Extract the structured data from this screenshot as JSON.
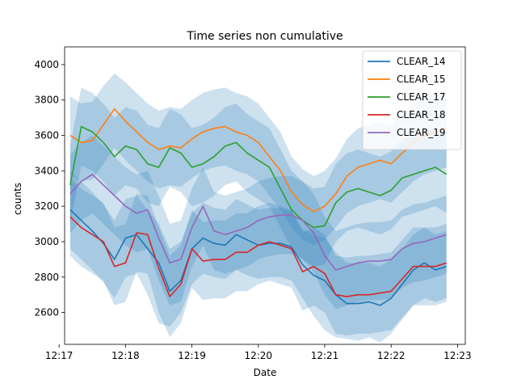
{
  "chart_data": {
    "type": "line",
    "title": "Time series non cumulative",
    "xlabel": "Date",
    "ylabel": "counts",
    "xlim": [
      "12:17:05",
      "12:23:07"
    ],
    "ylim": [
      2420,
      4100
    ],
    "x_ticks": [
      "12:17",
      "12:18",
      "12:19",
      "12:20",
      "12:21",
      "12:22",
      "12:23"
    ],
    "y_ticks": [
      2600,
      2800,
      3000,
      3200,
      3400,
      3600,
      3800,
      4000
    ],
    "legend_position": "top-right",
    "grid": false,
    "band_color": "#1f77b4",
    "x": [
      "12:17:10",
      "12:17:20",
      "12:17:30",
      "12:17:40",
      "12:17:50",
      "12:18:00",
      "12:18:10",
      "12:18:20",
      "12:18:30",
      "12:18:40",
      "12:18:50",
      "12:19:00",
      "12:19:10",
      "12:19:20",
      "12:19:30",
      "12:19:40",
      "12:19:50",
      "12:20:00",
      "12:20:10",
      "12:20:20",
      "12:20:30",
      "12:20:40",
      "12:20:50",
      "12:21:00",
      "12:21:10",
      "12:21:20",
      "12:21:30",
      "12:21:40",
      "12:21:50",
      "12:22:00",
      "12:22:10",
      "12:22:20",
      "12:22:30",
      "12:22:40",
      "12:22:50"
    ],
    "series": [
      {
        "name": "CLEAR_14",
        "color": "#1f77b4",
        "values": [
          3180,
          3120,
          3060,
          2990,
          2900,
          3020,
          3040,
          2960,
          2880,
          2720,
          2780,
          2960,
          3020,
          2990,
          2980,
          3040,
          3010,
          2980,
          2990,
          2990,
          2970,
          2870,
          2810,
          2780,
          2700,
          2650,
          2650,
          2660,
          2640,
          2680,
          2760,
          2840,
          2880,
          2840,
          2860
        ],
        "band_lower": [
          2960,
          2900,
          2840,
          2770,
          2680,
          2800,
          2820,
          2700,
          2540,
          2520,
          2600,
          2760,
          2820,
          2800,
          2790,
          2840,
          2810,
          2790,
          2800,
          2800,
          2780,
          2680,
          2580,
          2500,
          2460,
          2450,
          2440,
          2460,
          2430,
          2480,
          2560,
          2640,
          2680,
          2660,
          2680
        ],
        "band_upper": [
          3400,
          3340,
          3280,
          3210,
          3120,
          3240,
          3260,
          3180,
          3100,
          2960,
          3000,
          3160,
          3220,
          3190,
          3180,
          3240,
          3210,
          3180,
          3190,
          3190,
          3170,
          3070,
          3040,
          3020,
          2940,
          2880,
          2880,
          2880,
          2860,
          2900,
          2960,
          3040,
          3080,
          3040,
          3060
        ]
      },
      {
        "name": "CLEAR_15",
        "color": "#ff7f0e",
        "values": [
          3600,
          3560,
          3570,
          3660,
          3750,
          3680,
          3620,
          3560,
          3520,
          3540,
          3530,
          3580,
          3620,
          3640,
          3650,
          3620,
          3600,
          3560,
          3480,
          3400,
          3280,
          3210,
          3170,
          3200,
          3270,
          3370,
          3420,
          3440,
          3460,
          3440,
          3500,
          3560,
          3600,
          3620,
          3640
        ],
        "band_lower": [
          3380,
          3340,
          3350,
          3440,
          3530,
          3460,
          3400,
          3340,
          3300,
          3320,
          3310,
          3360,
          3400,
          3420,
          3430,
          3400,
          3380,
          3340,
          3260,
          3180,
          3080,
          3010,
          2980,
          3010,
          3080,
          3160,
          3200,
          3220,
          3240,
          3220,
          3280,
          3340,
          3380,
          3400,
          3420
        ],
        "band_upper": [
          3820,
          3780,
          3790,
          3880,
          3950,
          3900,
          3840,
          3780,
          3740,
          3760,
          3750,
          3800,
          3840,
          3860,
          3870,
          3840,
          3820,
          3780,
          3700,
          3620,
          3480,
          3410,
          3370,
          3400,
          3470,
          3580,
          3640,
          3660,
          3680,
          3660,
          3720,
          3780,
          3820,
          3840,
          3860
        ]
      },
      {
        "name": "CLEAR_17",
        "color": "#2ca02c",
        "values": [
          3320,
          3650,
          3620,
          3560,
          3480,
          3540,
          3520,
          3440,
          3420,
          3530,
          3500,
          3420,
          3440,
          3480,
          3540,
          3560,
          3500,
          3460,
          3420,
          3300,
          3180,
          3120,
          3080,
          3090,
          3220,
          3280,
          3300,
          3280,
          3260,
          3290,
          3360,
          3380,
          3400,
          3420,
          3380
        ],
        "band_lower": [
          3100,
          3430,
          3400,
          3340,
          3260,
          3320,
          3300,
          3220,
          3200,
          3310,
          3280,
          3200,
          3220,
          3260,
          3320,
          3340,
          3280,
          3240,
          3200,
          3080,
          2960,
          2900,
          2860,
          2870,
          3000,
          3060,
          3080,
          3060,
          3040,
          3070,
          3140,
          3160,
          3180,
          3200,
          3160
        ],
        "band_upper": [
          3540,
          3870,
          3840,
          3780,
          3700,
          3760,
          3740,
          3660,
          3640,
          3750,
          3720,
          3640,
          3660,
          3700,
          3760,
          3780,
          3720,
          3680,
          3640,
          3520,
          3400,
          3340,
          3300,
          3310,
          3440,
          3500,
          3520,
          3500,
          3480,
          3510,
          3580,
          3600,
          3620,
          3640,
          3600
        ]
      },
      {
        "name": "CLEAR_18",
        "color": "#d62728",
        "values": [
          3140,
          3080,
          3040,
          3000,
          2860,
          2880,
          3050,
          3040,
          2850,
          2690,
          2760,
          2960,
          2890,
          2900,
          2900,
          2940,
          2940,
          2980,
          3000,
          2980,
          2960,
          2830,
          2860,
          2820,
          2700,
          2690,
          2700,
          2700,
          2710,
          2720,
          2790,
          2860,
          2860,
          2860,
          2880
        ],
        "band_lower": [
          2920,
          2860,
          2820,
          2780,
          2640,
          2660,
          2830,
          2820,
          2600,
          2460,
          2540,
          2740,
          2670,
          2680,
          2680,
          2720,
          2720,
          2760,
          2780,
          2760,
          2740,
          2610,
          2640,
          2600,
          2480,
          2470,
          2480,
          2480,
          2490,
          2500,
          2570,
          2640,
          2640,
          2640,
          2660
        ],
        "band_upper": [
          3360,
          3300,
          3260,
          3220,
          3080,
          3100,
          3270,
          3260,
          3080,
          2920,
          2980,
          3180,
          3110,
          3120,
          3120,
          3160,
          3160,
          3200,
          3220,
          3200,
          3180,
          3050,
          3080,
          3040,
          2920,
          2910,
          2920,
          2920,
          2930,
          2940,
          3010,
          3080,
          3080,
          3080,
          3100
        ]
      },
      {
        "name": "CLEAR_19",
        "color": "#9467bd",
        "values": [
          3270,
          3340,
          3380,
          3320,
          3260,
          3200,
          3160,
          3180,
          3020,
          2880,
          2900,
          3080,
          3200,
          3060,
          3040,
          3060,
          3080,
          3120,
          3140,
          3150,
          3150,
          3120,
          3050,
          2920,
          2840,
          2860,
          2880,
          2890,
          2890,
          2900,
          2960,
          2990,
          3000,
          3020,
          3040
        ],
        "band_lower": [
          3050,
          3120,
          3160,
          3100,
          3040,
          2980,
          2940,
          2960,
          2780,
          2640,
          2660,
          2860,
          2980,
          2840,
          2820,
          2840,
          2860,
          2900,
          2920,
          2930,
          2930,
          2900,
          2830,
          2700,
          2620,
          2640,
          2660,
          2670,
          2670,
          2680,
          2740,
          2770,
          2780,
          2800,
          2820
        ],
        "band_upper": [
          3490,
          3560,
          3600,
          3540,
          3480,
          3420,
          3380,
          3400,
          3260,
          3100,
          3120,
          3300,
          3420,
          3280,
          3260,
          3280,
          3300,
          3340,
          3360,
          3370,
          3370,
          3340,
          3270,
          3140,
          3060,
          3080,
          3100,
          3110,
          3110,
          3120,
          3180,
          3210,
          3220,
          3240,
          3260
        ]
      }
    ]
  }
}
